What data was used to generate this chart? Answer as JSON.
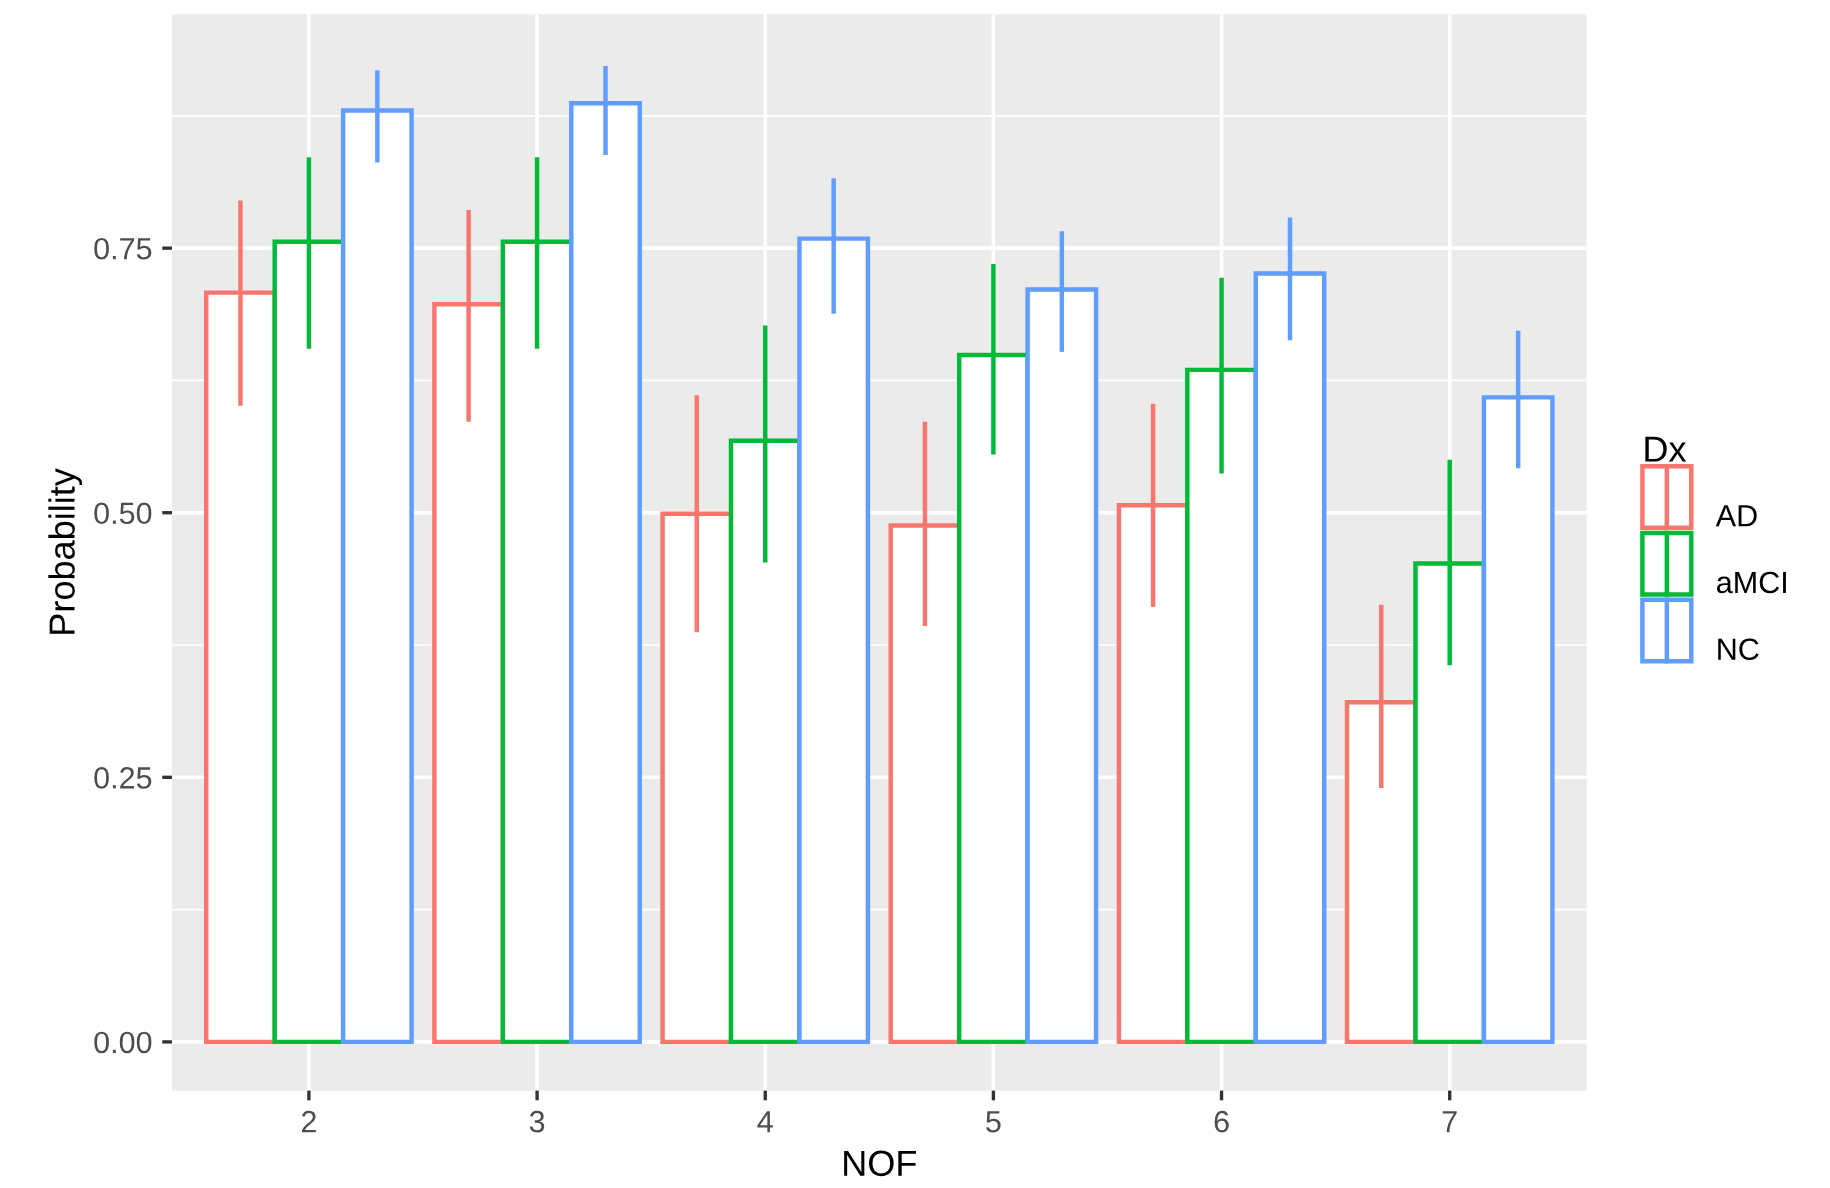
{
  "chart_data": {
    "type": "bar",
    "xlabel": "NOF",
    "ylabel": "Probability",
    "legend_title": "Dx",
    "categories": [
      "2",
      "3",
      "4",
      "5",
      "6",
      "7"
    ],
    "series": [
      {
        "name": "AD",
        "color": "#f8766d",
        "values": [
          0.708,
          0.697,
          0.499,
          0.488,
          0.507,
          0.321
        ],
        "errors": [
          [
            0.601,
            0.795
          ],
          [
            0.586,
            0.786
          ],
          [
            0.387,
            0.611
          ],
          [
            0.393,
            0.586
          ],
          [
            0.411,
            0.603
          ],
          [
            0.24,
            0.413
          ]
        ]
      },
      {
        "name": "aMCI",
        "color": "#00ba38",
        "values": [
          0.756,
          0.756,
          0.568,
          0.649,
          0.635,
          0.452
        ],
        "errors": [
          [
            0.655,
            0.836
          ],
          [
            0.655,
            0.836
          ],
          [
            0.453,
            0.677
          ],
          [
            0.555,
            0.735
          ],
          [
            0.537,
            0.722
          ],
          [
            0.356,
            0.55
          ]
        ]
      },
      {
        "name": "NC",
        "color": "#619cff",
        "values": [
          0.88,
          0.887,
          0.759,
          0.711,
          0.726,
          0.609
        ],
        "errors": [
          [
            0.831,
            0.918
          ],
          [
            0.838,
            0.922
          ],
          [
            0.688,
            0.816
          ],
          [
            0.652,
            0.766
          ],
          [
            0.663,
            0.779
          ],
          [
            0.542,
            0.672
          ]
        ]
      }
    ],
    "ylim": [
      -0.046,
      0.971
    ],
    "yticks": [
      {
        "value": 0,
        "label": "0.00"
      },
      {
        "value": 0.25,
        "label": "0.25"
      },
      {
        "value": 0.5,
        "label": "0.50"
      },
      {
        "value": 0.75,
        "label": "0.75"
      }
    ],
    "grid": true,
    "legend": "right"
  }
}
